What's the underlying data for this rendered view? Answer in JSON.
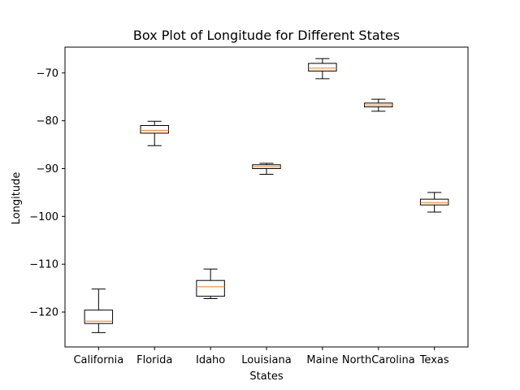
{
  "chart_data": {
    "type": "box",
    "title": "Box Plot of Longitude for Different States",
    "xlabel": "States",
    "ylabel": "Longitude",
    "ylim": [
      -127.3,
      -64.6
    ],
    "yticks": [
      -120,
      -110,
      -100,
      -90,
      -80,
      -70
    ],
    "ytick_labels": [
      "−120",
      "−110",
      "−100",
      "−90",
      "−80",
      "−70"
    ],
    "grid": false,
    "categories": [
      "California",
      "Florida",
      "Idaho",
      "Louisiana",
      "Maine",
      "NorthCarolina",
      "Texas"
    ],
    "boxes": [
      {
        "whisker_low": -124.3,
        "q1": -122.4,
        "median": -121.9,
        "q3": -119.6,
        "whisker_high": -115.2
      },
      {
        "whisker_low": -85.2,
        "q1": -82.6,
        "median": -82.0,
        "q3": -81.0,
        "whisker_high": -80.1
      },
      {
        "whisker_low": -117.2,
        "q1": -116.7,
        "median": -114.7,
        "q3": -113.4,
        "whisker_high": -111.0
      },
      {
        "whisker_low": -91.2,
        "q1": -90.0,
        "median": -89.6,
        "q3": -89.2,
        "whisker_high": -88.9
      },
      {
        "whisker_low": -71.2,
        "q1": -69.6,
        "median": -69.0,
        "q3": -68.0,
        "whisker_high": -67.0
      },
      {
        "whisker_low": -78.0,
        "q1": -77.1,
        "median": -76.7,
        "q3": -76.3,
        "whisker_high": -75.5
      },
      {
        "whisker_low": -99.1,
        "q1": -97.6,
        "median": -97.1,
        "q3": -96.4,
        "whisker_high": -95.0
      }
    ],
    "colors": {
      "box": "#000000",
      "median": "#ff7f0e",
      "axis": "#000000"
    }
  }
}
